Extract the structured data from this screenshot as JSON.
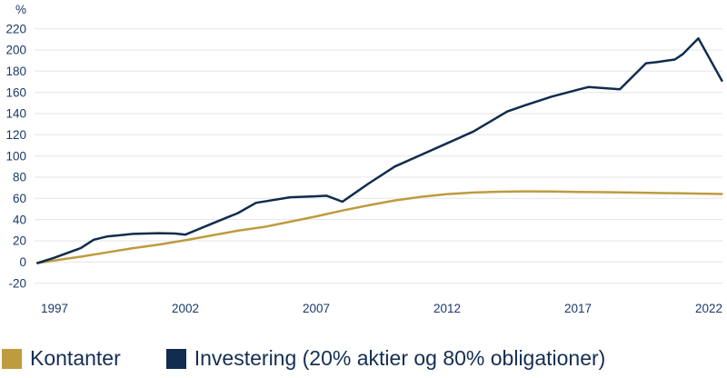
{
  "chart_data": {
    "type": "line",
    "title": "",
    "unit_label": "%",
    "xlabel": "",
    "ylabel": "%",
    "xlim": [
      1996.35,
      2022.55
    ],
    "ylim": [
      -20,
      220
    ],
    "grid": "horizontal",
    "legend_position": "bottom",
    "x_ticks": [
      1997,
      2002,
      2007,
      2012,
      2017,
      2022
    ],
    "y_ticks": [
      220,
      200,
      180,
      160,
      140,
      120,
      100,
      80,
      60,
      40,
      20,
      0,
      -20
    ],
    "colors": {
      "grid": "#e3e5e8",
      "tick_text": "#1b3a67",
      "legend_text": "#142e52",
      "background": "#ffffff"
    },
    "series": [
      {
        "name": "Kontanter",
        "color": "#be9b3f",
        "points": [
          [
            1996.35,
            -1
          ],
          [
            1997,
            1.5
          ],
          [
            1998,
            5
          ],
          [
            1999,
            9
          ],
          [
            2000,
            13
          ],
          [
            2001,
            16.5
          ],
          [
            2002,
            20.5
          ],
          [
            2003,
            25
          ],
          [
            2004,
            29.5
          ],
          [
            2005,
            33
          ],
          [
            2006,
            38
          ],
          [
            2007,
            43
          ],
          [
            2008,
            48.5
          ],
          [
            2009,
            53.5
          ],
          [
            2010,
            58
          ],
          [
            2011,
            61.5
          ],
          [
            2012,
            64
          ],
          [
            2013,
            65.5
          ],
          [
            2014,
            66.3
          ],
          [
            2015,
            66.6
          ],
          [
            2016,
            66.4
          ],
          [
            2017,
            66.1
          ],
          [
            2018,
            65.8
          ],
          [
            2019,
            65.5
          ],
          [
            2020,
            65.1
          ],
          [
            2021,
            64.7
          ],
          [
            2022,
            64.3
          ],
          [
            2022.5,
            64.1
          ]
        ]
      },
      {
        "name": "Investering (20% aktier og 80% obligationer)",
        "color": "#102c4e",
        "points": [
          [
            1996.35,
            -1
          ],
          [
            1997,
            4
          ],
          [
            1998,
            13
          ],
          [
            1998.5,
            21
          ],
          [
            1999,
            24
          ],
          [
            2000,
            26.5
          ],
          [
            2001,
            27.2
          ],
          [
            2001.6,
            26.8
          ],
          [
            2002,
            25.8
          ],
          [
            2003,
            36
          ],
          [
            2004,
            46
          ],
          [
            2004.7,
            55.8
          ],
          [
            2005,
            57
          ],
          [
            2006,
            61
          ],
          [
            2007,
            62
          ],
          [
            2007.4,
            62.5
          ],
          [
            2008,
            56.8
          ],
          [
            2009,
            74
          ],
          [
            2010,
            90
          ],
          [
            2011,
            101
          ],
          [
            2012,
            112
          ],
          [
            2013,
            123
          ],
          [
            2014.3,
            142
          ],
          [
            2015,
            148
          ],
          [
            2016,
            156
          ],
          [
            2017,
            162.5
          ],
          [
            2017.4,
            165
          ],
          [
            2018,
            164
          ],
          [
            2018.6,
            163
          ],
          [
            2019.6,
            187.5
          ],
          [
            2020,
            188.5
          ],
          [
            2020.7,
            191
          ],
          [
            2021,
            196
          ],
          [
            2021.6,
            211
          ],
          [
            2022.5,
            171
          ]
        ]
      }
    ]
  },
  "legend": {
    "items": [
      {
        "label": "Kontanter"
      },
      {
        "label": "Investering (20% aktier og 80% obligationer)"
      }
    ]
  }
}
